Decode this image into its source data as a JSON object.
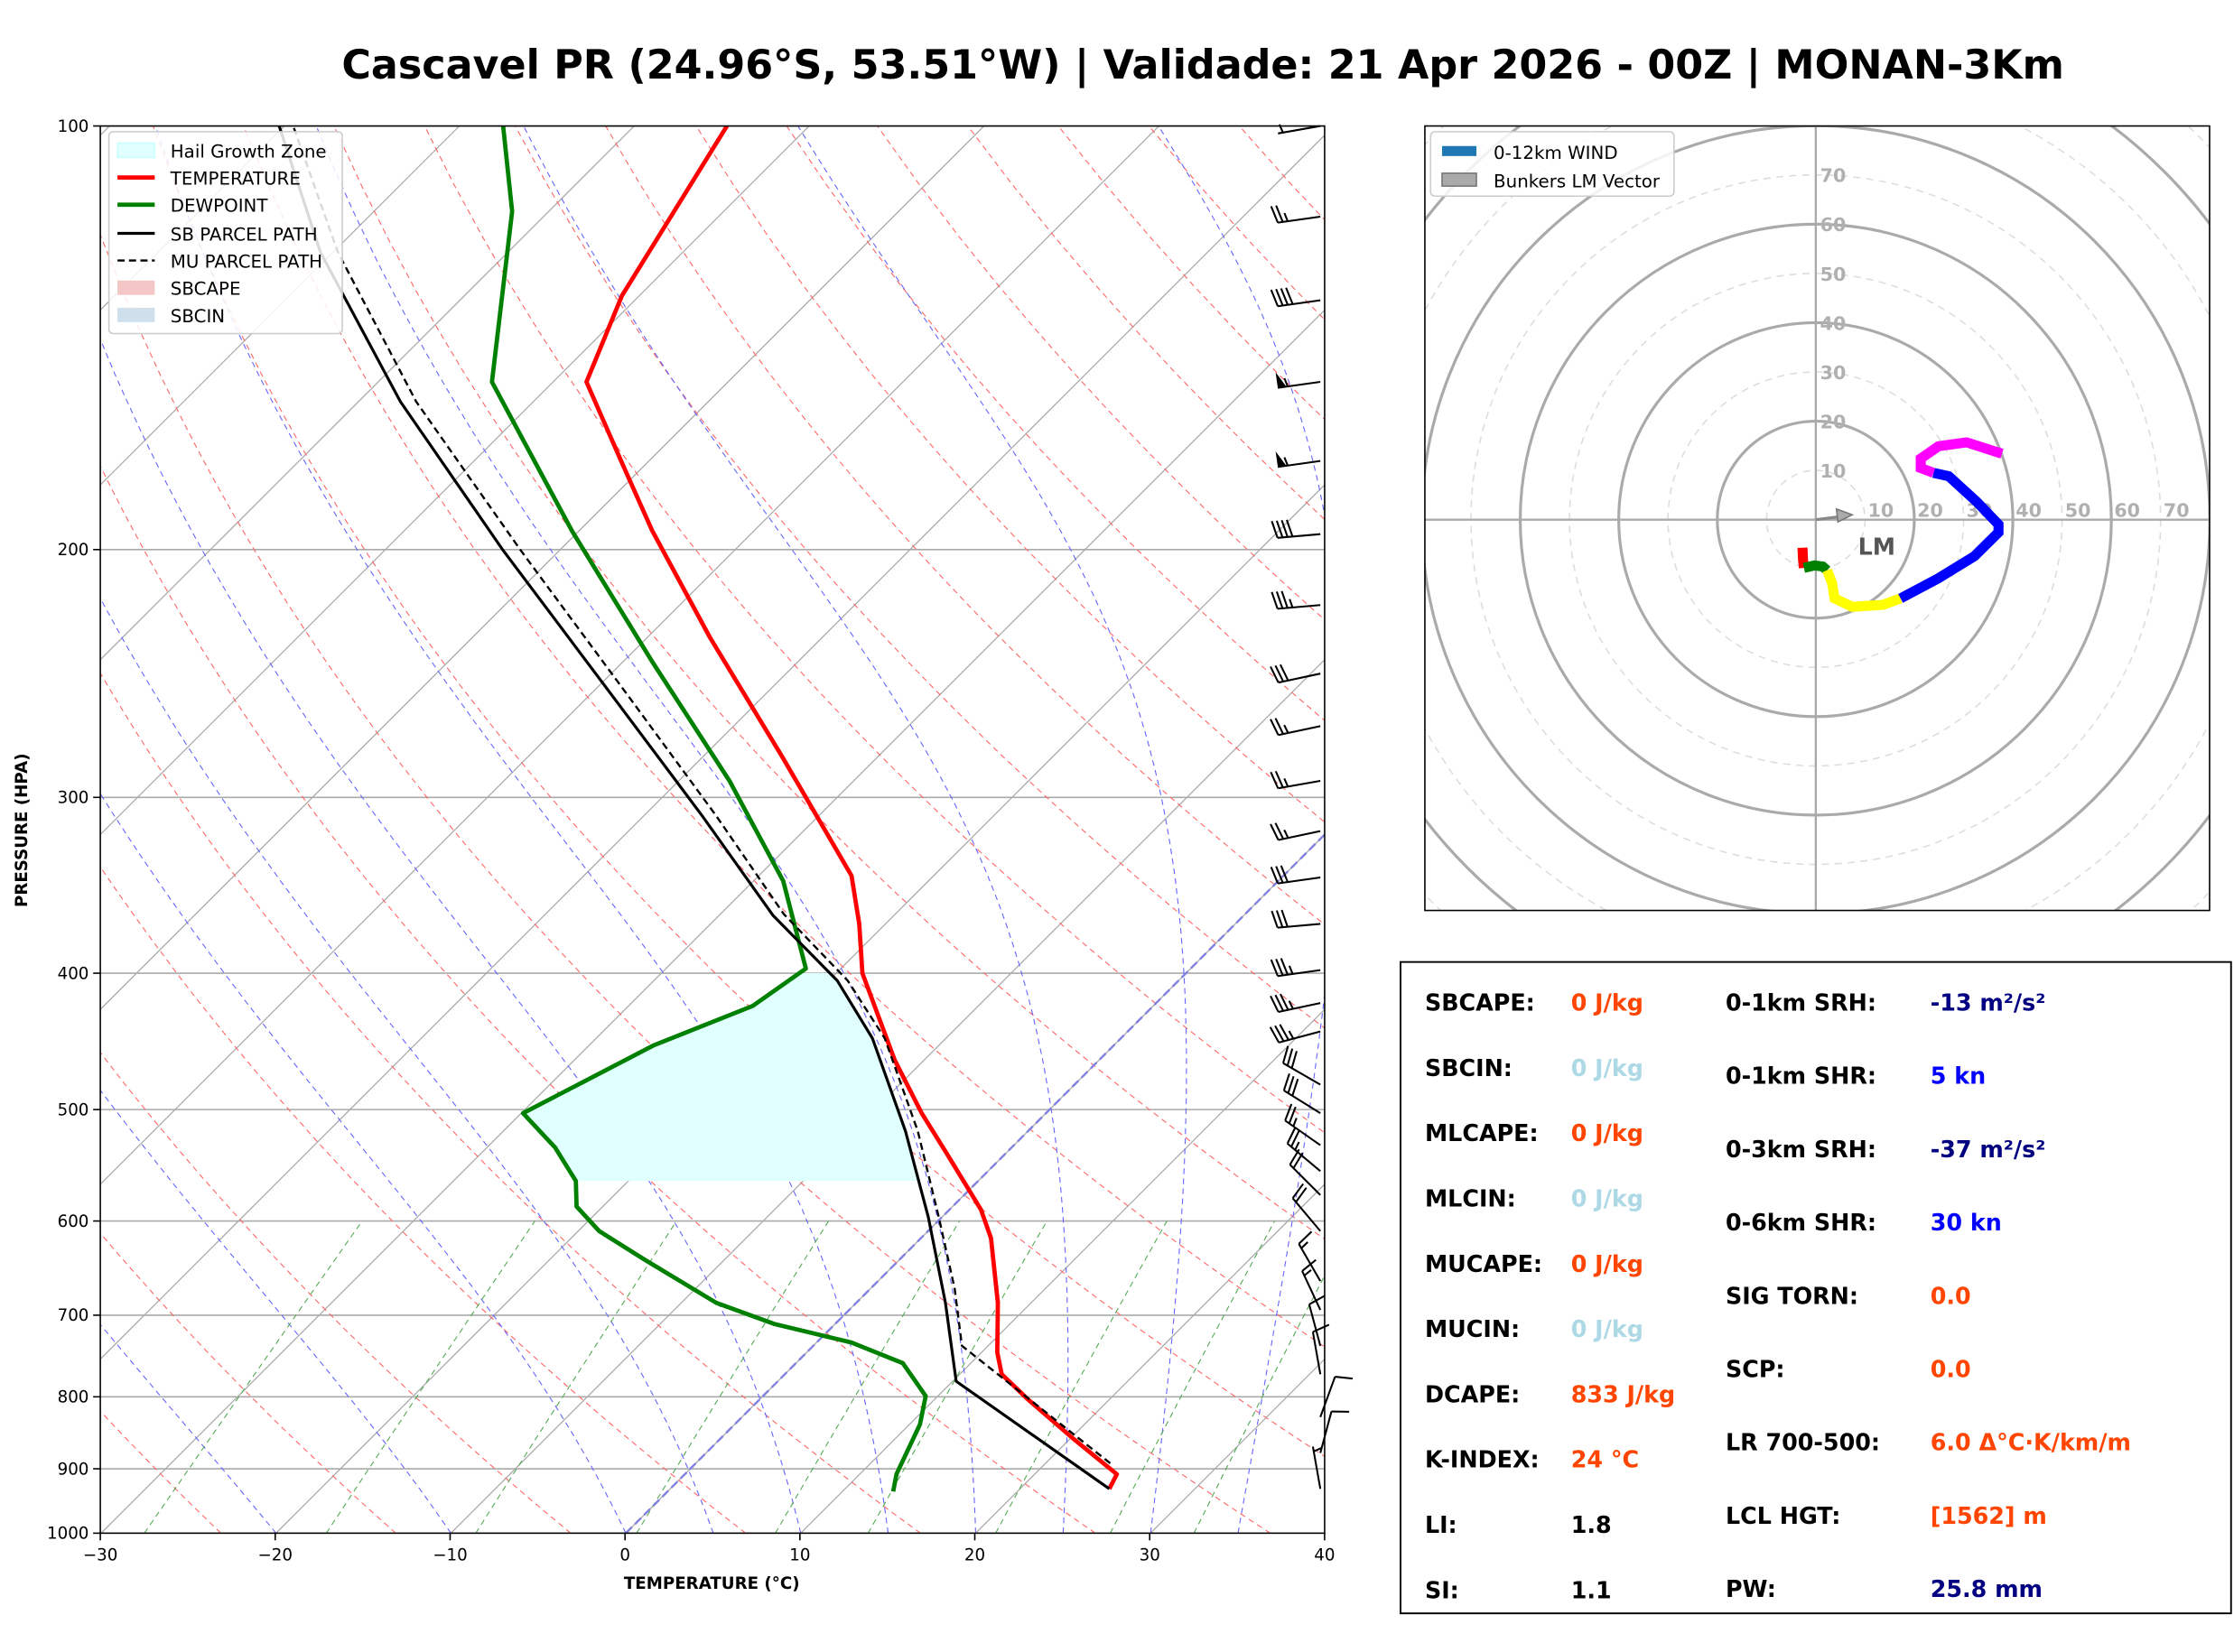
{
  "title": "Cascavel PR (24.96°S, 53.51°W) | Validade: 21 Apr 2026 - 00Z | MONAN-3Km",
  "chart_data": [
    {
      "type": "line",
      "subtype": "skew-t log-p",
      "xlabel": "TEMPERATURE (°C)",
      "ylabel": "PRESSURE (HPA)",
      "xlim": [
        -30,
        40
      ],
      "ylim": [
        1000,
        100
      ],
      "y_scale": "log",
      "x_ticks": [
        "−30",
        "−20",
        "−10",
        "0",
        "10",
        "20",
        "30",
        "40"
      ],
      "x_tick_values": [
        -30,
        -20,
        -10,
        0,
        10,
        20,
        30,
        40
      ],
      "y_ticks": [
        "100",
        "200",
        "300",
        "400",
        "500",
        "600",
        "700",
        "800",
        "900",
        "1000"
      ],
      "y_tick_values": [
        100,
        200,
        300,
        400,
        500,
        600,
        700,
        800,
        900,
        1000
      ],
      "legend_placement": "top-left",
      "legend": [
        "Hail Growth Zone",
        "TEMPERATURE",
        "DEWPOINT",
        "SB PARCEL PATH",
        "MU PARCEL PATH",
        "SBCAPE",
        "SBCIN"
      ],
      "colors": {
        "temperature": "#ff0000",
        "dewpoint": "#008000",
        "parcel": "#000000",
        "hail": "#e0ffff",
        "sbcape": "#f4c6c6",
        "sbcin": "#cfe0ec",
        "dry_adiabat": "#ff6666",
        "moist_adiabat": "#6666ff",
        "mixing_ratio": "#55aa55",
        "isotherm": "#a0a0a0"
      },
      "hail_growth_zone_hpa": [
        562,
        400
      ],
      "series": [
        {
          "name": "TEMPERATURE",
          "p": [
            930,
            908,
            857,
            804,
            771,
            744,
            686,
            617,
            589,
            536,
            503,
            461,
            400,
            369,
            341,
            280,
            231,
            194,
            174,
            152,
            132,
            100
          ],
          "t": [
            25.1,
            24.7,
            20.2,
            15.4,
            12.4,
            10.9,
            8.1,
            4.0,
            1.8,
            -3.5,
            -7.1,
            -11.7,
            -18.5,
            -21.5,
            -24.7,
            -35.6,
            -46.4,
            -55.8,
            -61.3,
            -68.1,
            -71.0,
            -74.7
          ]
        },
        {
          "name": "DEWPOINT",
          "p": [
            934,
            908,
            837,
            799,
            757,
            732,
            710,
            686,
            639,
            610,
            586,
            562,
            532,
            503,
            450,
            422,
            397,
            344,
            292,
            240,
            194,
            152,
            115,
            100
          ],
          "t": [
            12.9,
            12.1,
            10.6,
            9.3,
            6.1,
            2.0,
            -3.5,
            -8.0,
            -14.6,
            -18.8,
            -21.5,
            -23.0,
            -26.1,
            -29.9,
            -26.3,
            -22.9,
            -22.0,
            -28.3,
            -37.1,
            -48.4,
            -60.4,
            -73.5,
            -82.1,
            -87.5
          ]
        },
        {
          "name": "SB PARCEL PATH",
          "p": [
            930,
            780,
            686,
            596,
            518,
            445,
            405,
            364,
            309,
            256,
            200,
            157,
            123,
            100
          ],
          "t": [
            25.1,
            10.2,
            5.1,
            -0.8,
            -7.0,
            -14.2,
            -19.5,
            -26.9,
            -36.7,
            -48.2,
            -63.3,
            -77.6,
            -90.7,
            -100.3
          ]
        },
        {
          "name": "MU PARCEL PATH",
          "p": [
            892,
            736,
            670,
            596,
            518,
            445,
            405,
            363,
            309,
            256,
            200,
            157,
            123,
            100
          ],
          "t": [
            23.7,
            8.5,
            4.8,
            -0.2,
            -6.3,
            -13.5,
            -18.9,
            -26.4,
            -35.9,
            -47.3,
            -62.3,
            -76.7,
            -89.7,
            -99.5
          ]
        }
      ],
      "wind_barbs": [
        {
          "p": 100,
          "speed_kt": 5,
          "dir_deg": 260
        },
        {
          "p": 116,
          "speed_kt": 25,
          "dir_deg": 262
        },
        {
          "p": 133,
          "speed_kt": 40,
          "dir_deg": 262
        },
        {
          "p": 152,
          "speed_kt": 55,
          "dir_deg": 262
        },
        {
          "p": 173,
          "speed_kt": 55,
          "dir_deg": 262
        },
        {
          "p": 195,
          "speed_kt": 40,
          "dir_deg": 265
        },
        {
          "p": 219,
          "speed_kt": 35,
          "dir_deg": 265
        },
        {
          "p": 245,
          "speed_kt": 30,
          "dir_deg": 258
        },
        {
          "p": 267,
          "speed_kt": 25,
          "dir_deg": 258
        },
        {
          "p": 292,
          "speed_kt": 25,
          "dir_deg": 260
        },
        {
          "p": 317,
          "speed_kt": 25,
          "dir_deg": 258
        },
        {
          "p": 342,
          "speed_kt": 30,
          "dir_deg": 262
        },
        {
          "p": 369,
          "speed_kt": 30,
          "dir_deg": 265
        },
        {
          "p": 398,
          "speed_kt": 35,
          "dir_deg": 262
        },
        {
          "p": 420,
          "speed_kt": 35,
          "dir_deg": 258
        },
        {
          "p": 440,
          "speed_kt": 35,
          "dir_deg": 255
        },
        {
          "p": 480,
          "speed_kt": 30,
          "dir_deg": 300
        },
        {
          "p": 503,
          "speed_kt": 30,
          "dir_deg": 302
        },
        {
          "p": 530,
          "speed_kt": 25,
          "dir_deg": 305
        },
        {
          "p": 553,
          "speed_kt": 25,
          "dir_deg": 310
        },
        {
          "p": 575,
          "speed_kt": 20,
          "dir_deg": 315
        },
        {
          "p": 610,
          "speed_kt": 20,
          "dir_deg": 320
        },
        {
          "p": 662,
          "speed_kt": 15,
          "dir_deg": 330
        },
        {
          "p": 694,
          "speed_kt": 15,
          "dir_deg": 335
        },
        {
          "p": 736,
          "speed_kt": 10,
          "dir_deg": 345
        },
        {
          "p": 771,
          "speed_kt": 10,
          "dir_deg": 350
        },
        {
          "p": 827,
          "speed_kt": 10,
          "dir_deg": 20
        },
        {
          "p": 877,
          "speed_kt": 10,
          "dir_deg": 15
        },
        {
          "p": 930,
          "speed_kt": 5,
          "dir_deg": 350
        }
      ]
    },
    {
      "type": "line",
      "subtype": "hodograph",
      "xlim": [
        -80,
        80
      ],
      "ylim": [
        -80,
        80
      ],
      "ring_labels": [
        "10",
        "20",
        "30",
        "40",
        "50",
        "60",
        "70"
      ],
      "ring_values": [
        10,
        20,
        30,
        40,
        50,
        60,
        70
      ],
      "legend_placement": "top-left",
      "legend": [
        "0-12km WIND",
        "Bunkers LM Vector"
      ],
      "legend_colors": [
        "#1f77b4",
        "#aaaaaa"
      ],
      "lm_label": "LM",
      "lm_vector": {
        "u": 7.4,
        "v": 1.0
      },
      "segments": [
        {
          "color": "#ff0000",
          "u": [
            -2.7,
            -2.6,
            -2.4
          ],
          "v": [
            -5.7,
            -8.2,
            -9.8
          ]
        },
        {
          "color": "#008000",
          "u": [
            -2.4,
            -0.3,
            1.4,
            2.3
          ],
          "v": [
            -9.8,
            -9.3,
            -9.5,
            -10.3
          ]
        },
        {
          "color": "#ffff00",
          "u": [
            2.3,
            3.3,
            3.8,
            7.4,
            13.6,
            17.2
          ],
          "v": [
            -10.3,
            -12.9,
            -16.0,
            -17.7,
            -17.3,
            -16.0
          ]
        },
        {
          "color": "#0000ff",
          "u": [
            17.2,
            24.9,
            32.2,
            37.1,
            37.1,
            32.7,
            27.0,
            23.9
          ],
          "v": [
            -16.0,
            -11.9,
            -7.4,
            -2.6,
            -1.0,
            3.6,
            8.8,
            9.5
          ]
        },
        {
          "color": "#ff00ff",
          "u": [
            23.9,
            21.3,
            21.3,
            24.9,
            30.6,
            37.8
          ],
          "v": [
            9.5,
            10.5,
            12.4,
            14.9,
            15.7,
            13.4
          ]
        }
      ]
    }
  ],
  "indices": {
    "left": [
      {
        "label": "SBCAPE:",
        "value": "0 J/kg",
        "color": "#ff4500"
      },
      {
        "label": "SBCIN:",
        "value": "0 J/kg",
        "color": "#add8e6"
      },
      {
        "label": "MLCAPE:",
        "value": "0 J/kg",
        "color": "#ff4500"
      },
      {
        "label": "MLCIN:",
        "value": "0 J/kg",
        "color": "#add8e6"
      },
      {
        "label": "MUCAPE:",
        "value": "0 J/kg",
        "color": "#ff4500"
      },
      {
        "label": "MUCIN:",
        "value": "0 J/kg",
        "color": "#add8e6"
      },
      {
        "label": "DCAPE:",
        "value": "833 J/kg",
        "color": "#ff4500"
      },
      {
        "label": "K-INDEX:",
        "value": "24 °C",
        "color": "#ff4500"
      },
      {
        "label": "LI:",
        "value": "1.8",
        "color": "#000000"
      },
      {
        "label": "SI:",
        "value": "1.1",
        "color": "#000000"
      }
    ],
    "right": [
      {
        "label": "0-1km SRH:",
        "value": "-13 m²/s²",
        "color": "#000080"
      },
      {
        "label": "0-1km SHR:",
        "value": "5 kn",
        "color": "#0000ff"
      },
      {
        "label": "0-3km SRH:",
        "value": "-37 m²/s²",
        "color": "#000080"
      },
      {
        "label": "0-6km SHR:",
        "value": "30 kn",
        "color": "#0000ff"
      },
      {
        "label": "SIG TORN:",
        "value": "0.0",
        "color": "#ff4500"
      },
      {
        "label": "SCP:",
        "value": "0.0",
        "color": "#ff4500"
      },
      {
        "label": "LR 700-500:",
        "value": "6.0 Δ°C·K/km/m",
        "color": "#ff4500"
      },
      {
        "label": "LCL HGT:",
        "value": "[1562] m",
        "color": "#ff4500"
      },
      {
        "label": "PW:",
        "value": "25.8 mm",
        "color": "#000080"
      }
    ]
  }
}
